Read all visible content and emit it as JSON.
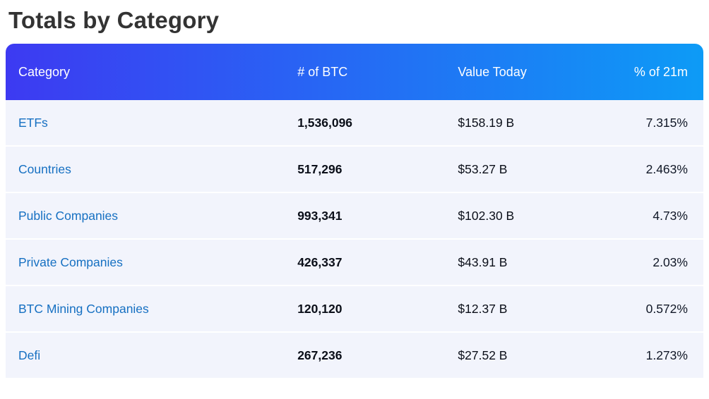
{
  "page": {
    "title": "Totals by Category"
  },
  "colors": {
    "header_gradient_start": "#3d3af2",
    "header_gradient_end": "#0d9bf6",
    "row_background": "#f2f4fc",
    "link_blue": "#1670c2",
    "title_text": "#333333"
  },
  "table": {
    "columns": [
      {
        "label": "Category",
        "align": "left"
      },
      {
        "label": "# of BTC",
        "align": "left"
      },
      {
        "label": "Value Today",
        "align": "left"
      },
      {
        "label": "% of 21m",
        "align": "right"
      }
    ],
    "rows": [
      {
        "category": "ETFs",
        "btc": "1,536,096",
        "value": "$158.19 B",
        "pct": "7.315%"
      },
      {
        "category": "Countries",
        "btc": "517,296",
        "value": "$53.27 B",
        "pct": "2.463%"
      },
      {
        "category": "Public Companies",
        "btc": "993,341",
        "value": "$102.30 B",
        "pct": "4.73%"
      },
      {
        "category": "Private Companies",
        "btc": "426,337",
        "value": "$43.91 B",
        "pct": "2.03%"
      },
      {
        "category": "BTC Mining Companies",
        "btc": "120,120",
        "value": "$12.37 B",
        "pct": "0.572%"
      },
      {
        "category": "Defi",
        "btc": "267,236",
        "value": "$27.52 B",
        "pct": "1.273%"
      }
    ]
  }
}
